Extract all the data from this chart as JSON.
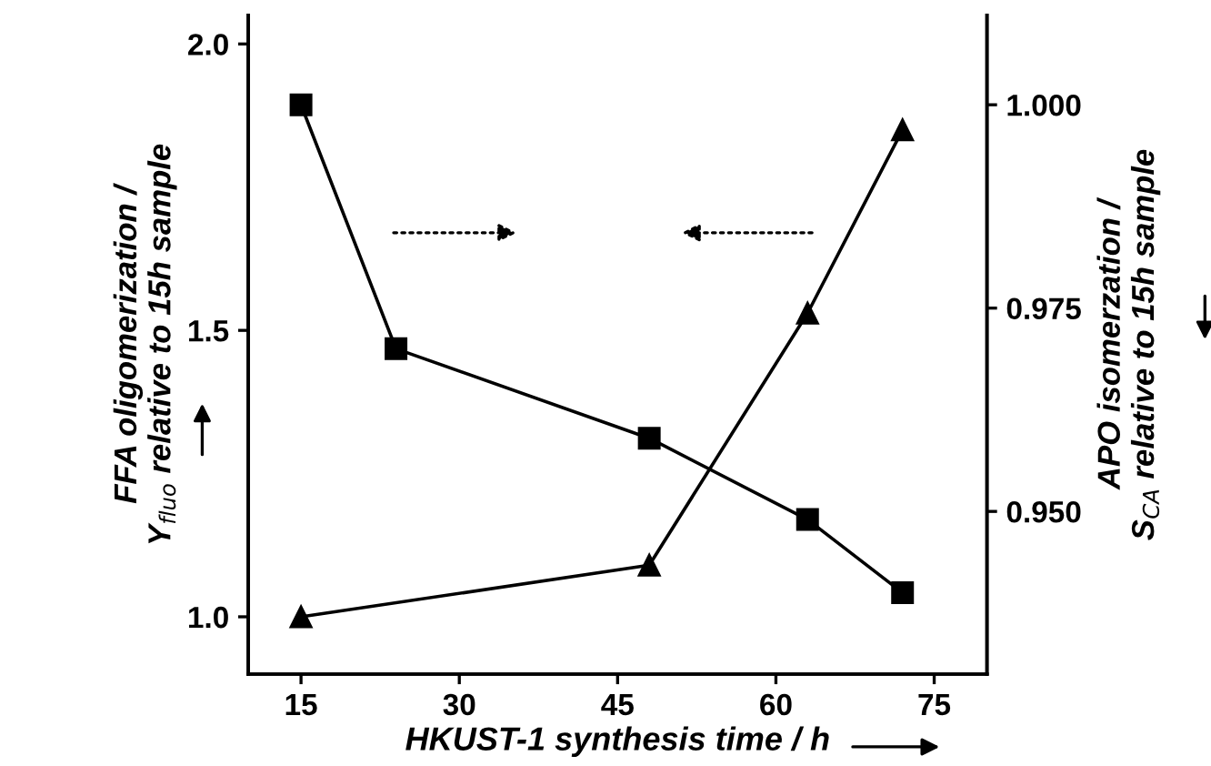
{
  "chart_data": {
    "type": "line",
    "xlabel": "HKUST-1 synthesis time / h",
    "ylabel": "FFA oligomerization /\nY$_{fluo}$ relative to 15h sample",
    "y2label": "APO isomerzation /\nS$_{CA}$ relative to 15h sample",
    "xlim": [
      10,
      80
    ],
    "xticks": [
      15,
      30,
      45,
      60,
      75
    ],
    "ylim": [
      0.9,
      2.05
    ],
    "yticks": [
      {
        "value": 1.0,
        "label": "1.0"
      },
      {
        "value": 1.5,
        "label": "1.5"
      },
      {
        "value": 2.0,
        "label": "2.0"
      }
    ],
    "y2lim": [
      0.93,
      1.011
    ],
    "y2ticks": [
      {
        "value": 0.95,
        "label": "0.950"
      },
      {
        "value": 0.975,
        "label": "0.975"
      },
      {
        "value": 1.0,
        "label": "1.000"
      }
    ],
    "series": [
      {
        "color": "#000000",
        "marker": "square",
        "axis": "y2",
        "x": [
          15,
          24,
          48,
          63,
          72
        ],
        "values": [
          1.0,
          0.97,
          0.959,
          0.949,
          0.94
        ]
      },
      {
        "color": "#000000",
        "marker": "triangle",
        "x": [
          15,
          48,
          63,
          72
        ],
        "values": [
          1.0,
          1.09,
          1.53,
          1.85
        ]
      }
    ],
    "grid": false,
    "legend": false,
    "line_style": "solid"
  }
}
